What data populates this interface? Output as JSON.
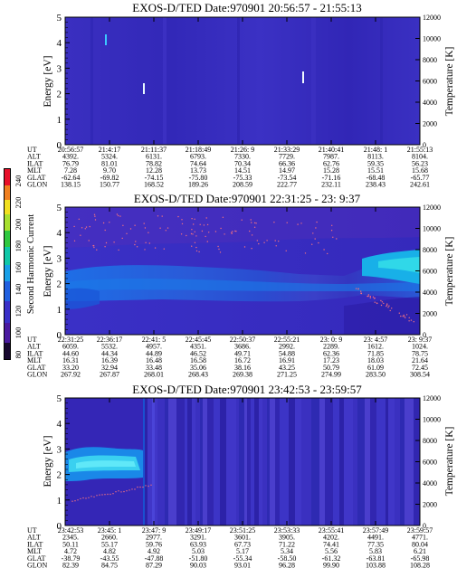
{
  "colorbar": {
    "label": "Second Harmonic Current",
    "ticks": [
      "240",
      "220",
      "200",
      "180",
      "160",
      "140",
      "120",
      "100",
      "80"
    ],
    "colors": [
      "#e8102a",
      "#f08020",
      "#f2e020",
      "#a8e030",
      "#30c840",
      "#10c8a8",
      "#18a0e8",
      "#2060e0",
      "#3a30c8",
      "#4a1aa0",
      "#000000"
    ]
  },
  "chart_data": [
    {
      "type": "heatmap",
      "title": "EXOS-D/TED  Date:970901  20:56:57 - 21:55:13",
      "ylabel": "Energy [eV]",
      "y2label": "Temperature [K]",
      "ylim": [
        0,
        5
      ],
      "y2lim": [
        0,
        12000
      ],
      "yticks": [
        "0",
        "1",
        "2",
        "3",
        "4",
        "5"
      ],
      "y2ticks": [
        "0",
        "2000",
        "4000",
        "6000",
        "8000",
        "10000",
        "12000"
      ],
      "row_labels": [
        "UT",
        "ALT",
        "ILAT",
        "MLT",
        "GLAT",
        "GLON"
      ],
      "columns": [
        [
          "20:56:57",
          "4392.",
          "76.79",
          "7.28",
          "-62.64",
          "138.15"
        ],
        [
          "21:4:17",
          "5324.",
          "81.01",
          "9.70",
          "-69.82",
          "150.77"
        ],
        [
          "21:11:37",
          "6131.",
          "78.82",
          "12.28",
          "-74.15",
          "168.52"
        ],
        [
          "21:18:49",
          "6793.",
          "74.64",
          "13.73",
          "-75.80",
          "189.26"
        ],
        [
          "21:26: 9",
          "7330.",
          "70.34",
          "14.51",
          "-75.33",
          "208.59"
        ],
        [
          "21:33:29",
          "7729.",
          "66.36",
          "14.97",
          "-73.54",
          "222.77"
        ],
        [
          "21:40:41",
          "7987.",
          "62.76",
          "15.28",
          "-71.16",
          "232.11"
        ],
        [
          "21:48: 1",
          "8113.",
          "59.35",
          "15.51",
          "-68.48",
          "238.43"
        ],
        [
          "21:55:13",
          "8104.",
          "56.23",
          "15.68",
          "-65.77",
          "242.61"
        ]
      ]
    },
    {
      "type": "heatmap",
      "title": "EXOS-D/TED   Date:970901  22:31:25 - 23: 9:37",
      "ylabel": "Energy [eV]",
      "y2label": "Temperature [K]",
      "ylim": [
        0,
        5
      ],
      "y2lim": [
        0,
        12000
      ],
      "yticks": [
        "0",
        "1",
        "2",
        "3",
        "4",
        "5"
      ],
      "y2ticks": [
        "0",
        "2000",
        "4000",
        "6000",
        "8000",
        "10000",
        "12000"
      ],
      "row_labels": [
        "UT",
        "ALT",
        "ILAT",
        "MLT",
        "GLAT",
        "GLON"
      ],
      "columns": [
        [
          "22:31:25",
          "6059.",
          "44.60",
          "16.31",
          "33.20",
          "267.92"
        ],
        [
          "22:36:17",
          "5532.",
          "44.34",
          "16.39",
          "32.94",
          "267.87"
        ],
        [
          "22:41: 5",
          "4957.",
          "44.89",
          "16.48",
          "33.48",
          "268.01"
        ],
        [
          "22:45:45",
          "4351.",
          "46.52",
          "16.58",
          "35.06",
          "268.43"
        ],
        [
          "22:50:37",
          "3686.",
          "49.71",
          "16.72",
          "38.16",
          "269.38"
        ],
        [
          "22:55:21",
          "2992.",
          "54.88",
          "16.91",
          "43.25",
          "271.25"
        ],
        [
          "23: 0: 9",
          "2289.",
          "62.36",
          "17.23",
          "50.79",
          "274.99"
        ],
        [
          "23: 4:57",
          "1612.",
          "71.85",
          "18.03",
          "61.09",
          "283.50"
        ],
        [
          "23: 9:37",
          "1024.",
          "78.75",
          "21.64",
          "72.45",
          "308.54"
        ]
      ]
    },
    {
      "type": "heatmap",
      "title": "EXOS-D/TED  Date:970901  23:42:53 - 23:59:57",
      "ylabel": "Energy [eV]",
      "y2label": "Temperature [K]",
      "ylim": [
        0,
        5
      ],
      "y2lim": [
        0,
        12000
      ],
      "yticks": [
        "0",
        "1",
        "2",
        "3",
        "4",
        "5"
      ],
      "y2ticks": [
        "0",
        "2000",
        "4000",
        "6000",
        "8000",
        "10000",
        "12000"
      ],
      "row_labels": [
        "UT",
        "ALT",
        "ILAT",
        "MLT",
        "GLAT",
        "GLON"
      ],
      "columns": [
        [
          "23:42:53",
          "2345.",
          "50.11",
          "4.72",
          "-38.79",
          "82.39"
        ],
        [
          "23:45: 1",
          "2660.",
          "55.17",
          "4.82",
          "-43.55",
          "84.75"
        ],
        [
          "23:47: 9",
          "2977.",
          "59.76",
          "4.92",
          "-47.88",
          "87.29"
        ],
        [
          "23:49:17",
          "3291.",
          "63.93",
          "5.03",
          "-51.80",
          "90.03"
        ],
        [
          "23:51:25",
          "3601.",
          "67.73",
          "5.17",
          "-55.34",
          "93.01"
        ],
        [
          "23:53:33",
          "3905.",
          "71.22",
          "5.34",
          "-58.50",
          "96.28"
        ],
        [
          "23:55:41",
          "4202.",
          "74.41",
          "5.56",
          "-61.32",
          "99.90"
        ],
        [
          "23:57:49",
          "4491.",
          "77.35",
          "5.83",
          "-63.81",
          "103.88"
        ],
        [
          "23:59:57",
          "4771.",
          "80.04",
          "6.21",
          "-65.98",
          "108.28"
        ]
      ]
    }
  ]
}
